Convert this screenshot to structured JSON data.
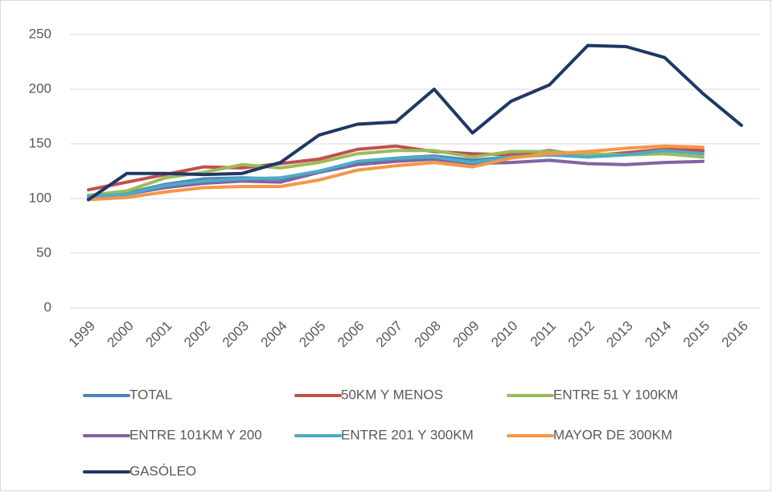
{
  "chart_data": {
    "type": "line",
    "categories": [
      "1999",
      "2000",
      "2001",
      "2002",
      "2003",
      "2004",
      "2005",
      "2006",
      "2007",
      "2008",
      "2009",
      "2010",
      "2011",
      "2012",
      "2013",
      "2014",
      "2015",
      "2016"
    ],
    "series": [
      {
        "name": "TOTAL",
        "color": "#4f81bd",
        "values": [
          100,
          105,
          113,
          118,
          119,
          118,
          125,
          133,
          137,
          139,
          135,
          138,
          140,
          138,
          141,
          144,
          144,
          null
        ]
      },
      {
        "name": "50KM Y MENOS",
        "color": "#c0504d",
        "values": [
          108,
          115,
          122,
          129,
          128,
          132,
          136,
          145,
          148,
          143,
          141,
          140,
          144,
          139,
          142,
          145,
          144,
          null
        ]
      },
      {
        "name": "ENTRE 51 Y 100KM",
        "color": "#9bbb59",
        "values": [
          103,
          107,
          119,
          124,
          131,
          128,
          133,
          141,
          144,
          144,
          138,
          143,
          143,
          141,
          140,
          141,
          138,
          null
        ]
      },
      {
        "name": "ENTRE 101KM Y 200",
        "color": "#8064a2",
        "values": [
          100,
          104,
          110,
          114,
          116,
          115,
          124,
          131,
          134,
          136,
          132,
          133,
          135,
          132,
          131,
          133,
          134,
          null
        ]
      },
      {
        "name": "ENTRE 201 Y 300KM",
        "color": "#4bacc6",
        "values": [
          102,
          104,
          112,
          116,
          118,
          119,
          125,
          134,
          137,
          138,
          133,
          138,
          140,
          138,
          140,
          144,
          141,
          null
        ]
      },
      {
        "name": "MAYOR DE 300KM",
        "color": "#f79646",
        "values": [
          99,
          101,
          106,
          110,
          111,
          111,
          117,
          126,
          130,
          133,
          129,
          137,
          141,
          143,
          146,
          148,
          147,
          null
        ]
      },
      {
        "name": "GASÓLEO",
        "color": "#1f3864",
        "values": [
          99,
          123,
          123,
          122,
          123,
          133,
          158,
          168,
          170,
          200,
          160,
          189,
          204,
          240,
          239,
          229,
          196,
          167
        ]
      }
    ],
    "ylim": [
      0,
      250
    ],
    "yticks": [
      0,
      50,
      100,
      150,
      200,
      250
    ],
    "grid": true,
    "legend": "bottom"
  }
}
